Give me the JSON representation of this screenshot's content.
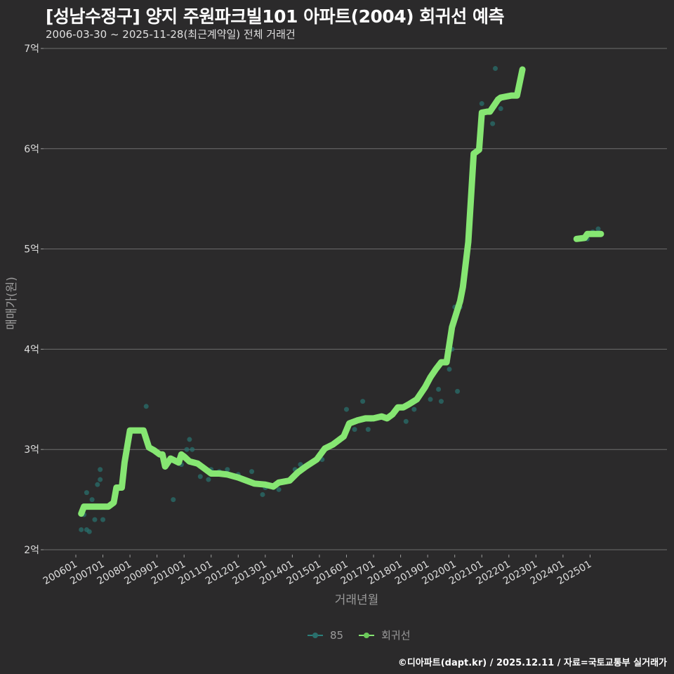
{
  "header": {
    "title": "[성남수정구] 양지 주원파크빌101 아파트(2004) 회귀선 예측",
    "subtitle": "2006-03-30 ~ 2025-11-28(최근계약일) 전체 거래건"
  },
  "legend": {
    "items": [
      {
        "label": "85",
        "color": "#2a7f7a"
      },
      {
        "label": "회귀선",
        "color": "#86e672"
      }
    ]
  },
  "footer": {
    "credit": "©디아파트(dapt.kr) / 2025.12.11 / 자료=국토교통부 실거래가"
  },
  "colors": {
    "background": "#2b2a2b",
    "gridline": "#6e6e6e",
    "regression": "#86e672",
    "scatter": "#2a6f6c"
  },
  "chart_data": {
    "type": "line",
    "title": "[성남수정구] 양지 주원파크빌101 아파트(2004) 회귀선 예측",
    "subtitle": "2006-03-30 ~ 2025-11-28(최근계약일) 전체 거래건",
    "xlabel": "거래년월",
    "ylabel": "매매가(원)",
    "ylim": [
      2,
      7
    ],
    "y_unit": "억",
    "yticks": [
      "2억",
      "3억",
      "4억",
      "5억",
      "6억",
      "7억"
    ],
    "xticks": [
      "200601",
      "200701",
      "200801",
      "200901",
      "201001",
      "201101",
      "201201",
      "201301",
      "201401",
      "201501",
      "201601",
      "201701",
      "201801",
      "201901",
      "202001",
      "202101",
      "202201",
      "202301",
      "202401",
      "202501"
    ],
    "grid": {
      "horizontal": true,
      "vertical": false
    },
    "legend_position": "bottom",
    "series": [
      {
        "name": "회귀선",
        "type": "line",
        "x": [
          2006.2,
          2006.3,
          2007.2,
          2007.4,
          2007.5,
          2007.7,
          2007.8,
          2008.0,
          2008.5,
          2008.7,
          2008.9,
          2009.1,
          2009.2,
          2009.3,
          2009.5,
          2009.8,
          2009.9,
          2010.0,
          2010.2,
          2010.5,
          2010.7,
          2011.0,
          2011.3,
          2011.6,
          2012.0,
          2012.3,
          2012.6,
          2013.0,
          2013.3,
          2013.5,
          2013.9,
          2014.2,
          2014.5,
          2014.9,
          2015.2,
          2015.5,
          2015.9,
          2016.1,
          2016.4,
          2016.7,
          2017.0,
          2017.3,
          2017.5,
          2017.7,
          2017.9,
          2018.1,
          2018.3,
          2018.6,
          2018.9,
          2019.1,
          2019.3,
          2019.5,
          2019.7,
          2019.9,
          2020.2,
          2020.3,
          2020.5,
          2020.7,
          2020.9,
          2021.0,
          2021.2,
          2021.3,
          2021.6,
          2021.7,
          2021.9,
          2022.1,
          2022.3,
          2022.5,
          2024.5,
          2024.8,
          2024.9,
          2025.4
        ],
        "values": [
          2.36,
          2.43,
          2.43,
          2.47,
          2.62,
          2.62,
          2.87,
          3.19,
          3.19,
          3.02,
          2.99,
          2.95,
          2.95,
          2.83,
          2.91,
          2.87,
          2.95,
          2.93,
          2.88,
          2.86,
          2.82,
          2.76,
          2.76,
          2.75,
          2.72,
          2.69,
          2.66,
          2.65,
          2.63,
          2.67,
          2.69,
          2.77,
          2.83,
          2.9,
          3.01,
          3.05,
          3.13,
          3.26,
          3.29,
          3.31,
          3.31,
          3.33,
          3.31,
          3.35,
          3.42,
          3.42,
          3.45,
          3.5,
          3.62,
          3.72,
          3.8,
          3.87,
          3.87,
          4.22,
          4.48,
          4.62,
          5.07,
          5.95,
          5.99,
          6.36,
          6.37,
          6.37,
          6.49,
          6.51,
          6.52,
          6.53,
          6.53,
          6.79,
          5.1,
          5.11,
          5.15,
          5.15
        ]
      },
      {
        "name": "85",
        "type": "scatter",
        "x": [
          2006.2,
          2006.3,
          2006.4,
          2006.4,
          2006.5,
          2006.6,
          2006.7,
          2006.8,
          2006.9,
          2006.9,
          2007.0,
          2008.6,
          2008.5,
          2009.6,
          2009.9,
          2010.1,
          2010.2,
          2010.3,
          2010.6,
          2010.9,
          2011.0,
          2011.3,
          2011.6,
          2012.0,
          2012.5,
          2012.9,
          2013.0,
          2013.3,
          2013.5,
          2014.1,
          2014.3,
          2015.0,
          2015.1,
          2016.0,
          2016.3,
          2016.6,
          2016.8,
          2016.9,
          2017.3,
          2017.7,
          2018.2,
          2018.5,
          2018.7,
          2019.1,
          2019.4,
          2019.5,
          2019.8,
          2019.9,
          2020.0,
          2020.1,
          2020.2,
          2021.0,
          2021.4,
          2021.5,
          2021.7,
          2024.9,
          2025.1,
          2025.3
        ],
        "values": [
          2.2,
          2.35,
          2.2,
          2.57,
          2.18,
          2.5,
          2.3,
          2.65,
          2.7,
          2.8,
          2.3,
          3.43,
          3.17,
          2.5,
          2.85,
          3.0,
          3.1,
          3.0,
          2.73,
          2.7,
          2.8,
          2.78,
          2.8,
          2.75,
          2.78,
          2.55,
          2.62,
          2.62,
          2.6,
          2.8,
          2.85,
          2.95,
          2.9,
          3.4,
          3.2,
          3.48,
          3.2,
          3.3,
          3.32,
          3.35,
          3.28,
          3.4,
          3.55,
          3.5,
          3.6,
          3.48,
          3.8,
          4.0,
          4.42,
          3.58,
          4.42,
          6.45,
          6.25,
          6.8,
          6.4,
          5.1,
          5.17,
          5.2
        ]
      }
    ]
  }
}
